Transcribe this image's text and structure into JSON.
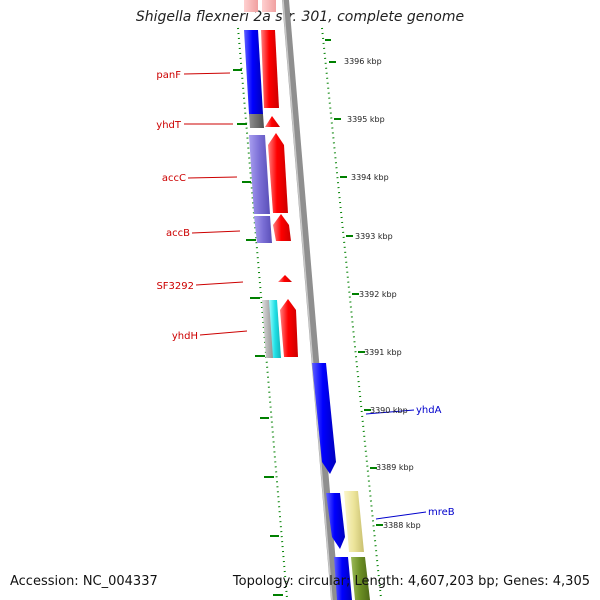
{
  "title": "Shigella flexneri 2a str. 301, complete genome",
  "accession": "Accession: NC_004337",
  "summary": "Topology: circular; Length: 4,607,203 bp; Genes: 4,305",
  "scale_labels": [
    "3396 kbp",
    "3395 kbp",
    "3394 kbp",
    "3393 kbp",
    "3392 kbp",
    "3391 kbp",
    "3390 kbp",
    "3389 kbp",
    "3388 kbp"
  ],
  "left_genes": [
    {
      "name": "panF",
      "color": "#cc0000"
    },
    {
      "name": "yhdT",
      "color": "#cc0000"
    },
    {
      "name": "accC",
      "color": "#cc0000"
    },
    {
      "name": "accB",
      "color": "#cc0000"
    },
    {
      "name": "SF3292",
      "color": "#cc0000"
    },
    {
      "name": "yhdH",
      "color": "#cc0000"
    }
  ],
  "right_genes": [
    {
      "name": "yhdA",
      "color": "#0000cc"
    },
    {
      "name": "mreB",
      "color": "#0000cc"
    }
  ],
  "colors": {
    "forward_strand": "#ff0000",
    "reverse_strand": "#0000ff",
    "cog_purple": "#7b6fd6",
    "cog_cyan": "#22e0e6",
    "cog_gray": "#b4b4b4",
    "cog_yellow": "#ece49a",
    "cog_olive": "#6b8e23",
    "ruler": "#008000",
    "backbone": "#8a8a8a"
  }
}
